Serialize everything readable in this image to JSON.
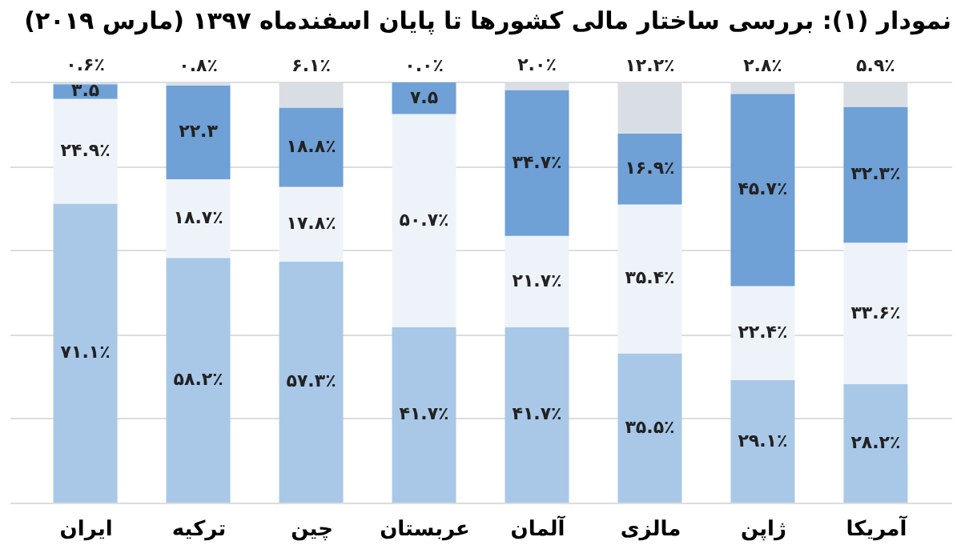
{
  "chart_data": {
    "type": "bar",
    "stacked": true,
    "title": "نمودار (۱): بررسی ساختار مالی کشورها تا پایان اسفندماه ۱۳۹۷ (مارس ۲۰۱۹)",
    "categories": [
      "ایران",
      "ترکیه",
      "چین",
      "عربستان",
      "آلمان",
      "مالزی",
      "ژاپن",
      "آمریکا"
    ],
    "grid": "y",
    "tick_labels": "x",
    "series": [
      {
        "color": "#a9c8e8",
        "values": [
          71.1,
          58.2,
          57.3,
          41.7,
          41.7,
          35.5,
          29.1,
          28.2
        ],
        "value_labels": [
          "۷۱.۱٪",
          "۵۸.۲٪",
          "۵۷.۳٪",
          "۴۱.۷٪",
          "۴۱.۷٪",
          "۳۵.۵٪",
          "۲۹.۱٪",
          "۲۸.۲٪"
        ]
      },
      {
        "color": "#eef3fa",
        "values": [
          24.9,
          18.7,
          17.8,
          50.7,
          21.7,
          35.4,
          22.4,
          33.6
        ],
        "value_labels": [
          "۲۴.۹٪",
          "۱۸.۷٪",
          "۱۷.۸٪",
          "۵۰.۷٪",
          "۲۱.۷٪",
          "۳۵.۴٪",
          "۲۲.۴٪",
          "۳۳.۶٪"
        ]
      },
      {
        "color": "#6fa0d6",
        "values": [
          3.5,
          22.3,
          18.8,
          7.5,
          34.7,
          16.9,
          45.7,
          32.3
        ],
        "value_labels": [
          "۳.۵",
          "۲۲.۳",
          "۱۸.۸٪",
          "۷.۵",
          "۳۴.۷٪",
          "۱۶.۹٪",
          "۴۵.۷٪",
          "۳۲.۳٪"
        ]
      },
      {
        "color": "#d9dee5",
        "values": [
          0.6,
          0.8,
          6.1,
          0.0,
          2.0,
          12.2,
          2.8,
          5.9
        ],
        "value_labels": [
          "۰.۶٪",
          "۰.۸٪",
          "۶.۱٪",
          "۰.۰٪",
          "۲.۰٪",
          "۱۲.۲٪",
          "۲.۸٪",
          "۵.۹٪"
        ]
      }
    ]
  }
}
